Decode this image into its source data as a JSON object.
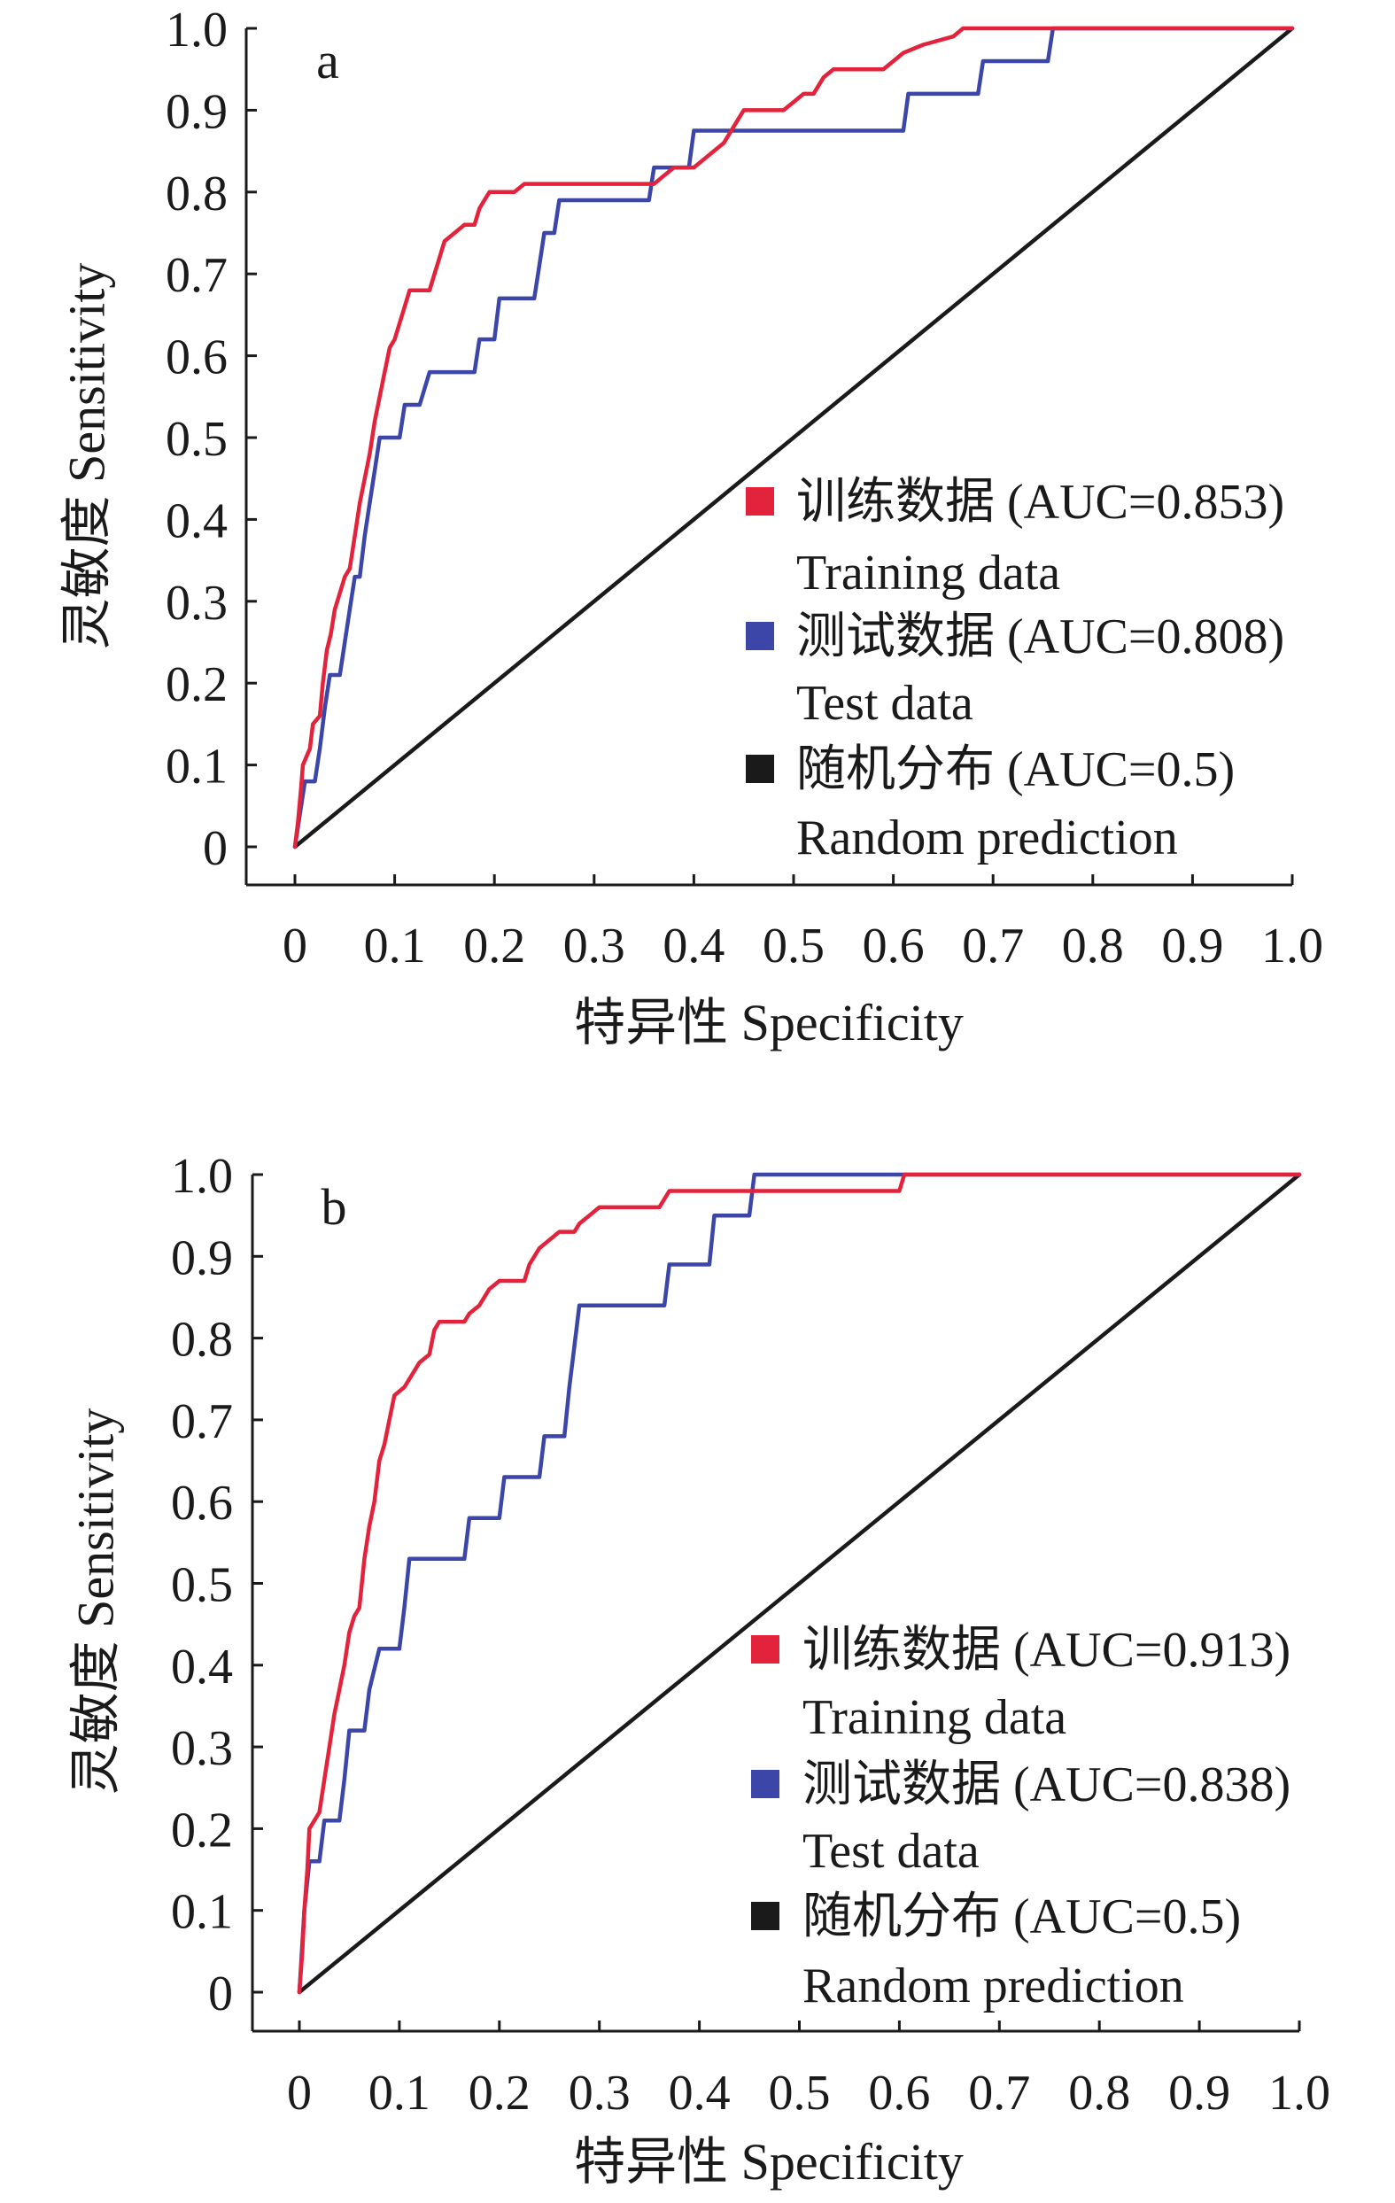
{
  "chart_data": [
    {
      "type": "line",
      "panel_label": "a",
      "xlabel": "特异性 Specificity",
      "ylabel": "灵敏度 Sensitivity",
      "xlim": [
        0,
        1
      ],
      "ylim": [
        0,
        1
      ],
      "xticks": [
        "0",
        "0.1",
        "0.2",
        "0.3",
        "0.4",
        "0.5",
        "0.6",
        "0.7",
        "0.8",
        "0.9",
        "1.0"
      ],
      "yticks": [
        "0",
        "0.1",
        "0.2",
        "0.3",
        "0.4",
        "0.5",
        "0.6",
        "0.7",
        "0.8",
        "0.9",
        "1.0"
      ],
      "grid": false,
      "legend_position": "lower-right",
      "series": [
        {
          "name": "训练数据 (AUC=0.853)",
          "name_en": "Training data",
          "color": "#e2233b",
          "points": [
            [
              0,
              0
            ],
            [
              0.003,
              0.03
            ],
            [
              0.006,
              0.07
            ],
            [
              0.008,
              0.1
            ],
            [
              0.015,
              0.12
            ],
            [
              0.018,
              0.15
            ],
            [
              0.025,
              0.16
            ],
            [
              0.028,
              0.2
            ],
            [
              0.032,
              0.24
            ],
            [
              0.036,
              0.26
            ],
            [
              0.04,
              0.29
            ],
            [
              0.045,
              0.31
            ],
            [
              0.05,
              0.33
            ],
            [
              0.055,
              0.34
            ],
            [
              0.06,
              0.38
            ],
            [
              0.065,
              0.42
            ],
            [
              0.07,
              0.45
            ],
            [
              0.075,
              0.48
            ],
            [
              0.08,
              0.52
            ],
            [
              0.085,
              0.55
            ],
            [
              0.09,
              0.58
            ],
            [
              0.095,
              0.61
            ],
            [
              0.1,
              0.62
            ],
            [
              0.105,
              0.64
            ],
            [
              0.11,
              0.66
            ],
            [
              0.115,
              0.68
            ],
            [
              0.135,
              0.68
            ],
            [
              0.14,
              0.7
            ],
            [
              0.145,
              0.72
            ],
            [
              0.15,
              0.74
            ],
            [
              0.16,
              0.75
            ],
            [
              0.17,
              0.76
            ],
            [
              0.18,
              0.76
            ],
            [
              0.185,
              0.78
            ],
            [
              0.19,
              0.79
            ],
            [
              0.195,
              0.8
            ],
            [
              0.22,
              0.8
            ],
            [
              0.23,
              0.81
            ],
            [
              0.36,
              0.81
            ],
            [
              0.37,
              0.82
            ],
            [
              0.38,
              0.83
            ],
            [
              0.4,
              0.83
            ],
            [
              0.41,
              0.84
            ],
            [
              0.42,
              0.85
            ],
            [
              0.43,
              0.86
            ],
            [
              0.44,
              0.88
            ],
            [
              0.45,
              0.9
            ],
            [
              0.49,
              0.9
            ],
            [
              0.5,
              0.91
            ],
            [
              0.51,
              0.92
            ],
            [
              0.52,
              0.92
            ],
            [
              0.53,
              0.94
            ],
            [
              0.54,
              0.95
            ],
            [
              0.59,
              0.95
            ],
            [
              0.6,
              0.96
            ],
            [
              0.61,
              0.97
            ],
            [
              0.63,
              0.98
            ],
            [
              0.66,
              0.99
            ],
            [
              0.67,
              1.0
            ],
            [
              1.0,
              1.0
            ]
          ]
        },
        {
          "name": "测试数据 (AUC=0.808)",
          "name_en": "Test data",
          "color": "#3c46a9",
          "points": [
            [
              0,
              0
            ],
            [
              0.005,
              0.04
            ],
            [
              0.01,
              0.08
            ],
            [
              0.02,
              0.08
            ],
            [
              0.025,
              0.12
            ],
            [
              0.03,
              0.17
            ],
            [
              0.035,
              0.21
            ],
            [
              0.045,
              0.21
            ],
            [
              0.05,
              0.25
            ],
            [
              0.055,
              0.29
            ],
            [
              0.06,
              0.33
            ],
            [
              0.065,
              0.33
            ],
            [
              0.07,
              0.38
            ],
            [
              0.075,
              0.42
            ],
            [
              0.08,
              0.46
            ],
            [
              0.085,
              0.5
            ],
            [
              0.105,
              0.5
            ],
            [
              0.11,
              0.54
            ],
            [
              0.125,
              0.54
            ],
            [
              0.13,
              0.56
            ],
            [
              0.135,
              0.58
            ],
            [
              0.18,
              0.58
            ],
            [
              0.185,
              0.62
            ],
            [
              0.2,
              0.62
            ],
            [
              0.205,
              0.67
            ],
            [
              0.24,
              0.67
            ],
            [
              0.245,
              0.71
            ],
            [
              0.25,
              0.75
            ],
            [
              0.26,
              0.75
            ],
            [
              0.265,
              0.79
            ],
            [
              0.355,
              0.79
            ],
            [
              0.36,
              0.83
            ],
            [
              0.395,
              0.83
            ],
            [
              0.4,
              0.875
            ],
            [
              0.61,
              0.875
            ],
            [
              0.615,
              0.92
            ],
            [
              0.685,
              0.92
            ],
            [
              0.69,
              0.96
            ],
            [
              0.755,
              0.96
            ],
            [
              0.76,
              1.0
            ],
            [
              1.0,
              1.0
            ]
          ]
        },
        {
          "name": "随机分布 (AUC=0.5)",
          "name_en": "Random prediction",
          "color": "#1a1a1a",
          "points": [
            [
              0,
              0
            ],
            [
              1,
              1
            ]
          ]
        }
      ]
    },
    {
      "type": "line",
      "panel_label": "b",
      "xlabel": "特异性 Specificity",
      "ylabel": "灵敏度 Sensitivity",
      "xlim": [
        0,
        1
      ],
      "ylim": [
        0,
        1
      ],
      "xticks": [
        "0",
        "0.1",
        "0.2",
        "0.3",
        "0.4",
        "0.5",
        "0.6",
        "0.7",
        "0.8",
        "0.9",
        "1.0"
      ],
      "yticks": [
        "0",
        "0.1",
        "0.2",
        "0.3",
        "0.4",
        "0.5",
        "0.6",
        "0.7",
        "0.8",
        "0.9",
        "1.0"
      ],
      "grid": false,
      "legend_position": "lower-right",
      "series": [
        {
          "name": "训练数据 (AUC=0.913)",
          "name_en": "Training data",
          "color": "#e2233b",
          "points": [
            [
              0,
              0
            ],
            [
              0.003,
              0.05
            ],
            [
              0.005,
              0.1
            ],
            [
              0.008,
              0.15
            ],
            [
              0.01,
              0.2
            ],
            [
              0.02,
              0.22
            ],
            [
              0.025,
              0.26
            ],
            [
              0.03,
              0.3
            ],
            [
              0.035,
              0.34
            ],
            [
              0.04,
              0.37
            ],
            [
              0.045,
              0.4
            ],
            [
              0.05,
              0.44
            ],
            [
              0.055,
              0.46
            ],
            [
              0.06,
              0.47
            ],
            [
              0.065,
              0.53
            ],
            [
              0.07,
              0.57
            ],
            [
              0.075,
              0.6
            ],
            [
              0.08,
              0.65
            ],
            [
              0.085,
              0.67
            ],
            [
              0.09,
              0.7
            ],
            [
              0.095,
              0.73
            ],
            [
              0.105,
              0.74
            ],
            [
              0.11,
              0.75
            ],
            [
              0.12,
              0.77
            ],
            [
              0.13,
              0.78
            ],
            [
              0.135,
              0.81
            ],
            [
              0.14,
              0.82
            ],
            [
              0.165,
              0.82
            ],
            [
              0.17,
              0.83
            ],
            [
              0.18,
              0.84
            ],
            [
              0.19,
              0.86
            ],
            [
              0.2,
              0.87
            ],
            [
              0.225,
              0.87
            ],
            [
              0.23,
              0.89
            ],
            [
              0.24,
              0.91
            ],
            [
              0.25,
              0.92
            ],
            [
              0.26,
              0.93
            ],
            [
              0.275,
              0.93
            ],
            [
              0.28,
              0.94
            ],
            [
              0.29,
              0.95
            ],
            [
              0.3,
              0.96
            ],
            [
              0.36,
              0.96
            ],
            [
              0.37,
              0.98
            ],
            [
              0.6,
              0.98
            ],
            [
              0.605,
              1.0
            ],
            [
              1.0,
              1.0
            ]
          ]
        },
        {
          "name": "测试数据 (AUC=0.838)",
          "name_en": "Test data",
          "color": "#3c46a9",
          "points": [
            [
              0,
              0
            ],
            [
              0.005,
              0.1
            ],
            [
              0.01,
              0.16
            ],
            [
              0.02,
              0.16
            ],
            [
              0.025,
              0.21
            ],
            [
              0.04,
              0.21
            ],
            [
              0.045,
              0.26
            ],
            [
              0.05,
              0.32
            ],
            [
              0.065,
              0.32
            ],
            [
              0.07,
              0.37
            ],
            [
              0.08,
              0.42
            ],
            [
              0.1,
              0.42
            ],
            [
              0.105,
              0.47
            ],
            [
              0.11,
              0.53
            ],
            [
              0.165,
              0.53
            ],
            [
              0.17,
              0.58
            ],
            [
              0.2,
              0.58
            ],
            [
              0.205,
              0.63
            ],
            [
              0.24,
              0.63
            ],
            [
              0.245,
              0.68
            ],
            [
              0.265,
              0.68
            ],
            [
              0.27,
              0.74
            ],
            [
              0.275,
              0.79
            ],
            [
              0.28,
              0.84
            ],
            [
              0.365,
              0.84
            ],
            [
              0.37,
              0.89
            ],
            [
              0.41,
              0.89
            ],
            [
              0.415,
              0.95
            ],
            [
              0.45,
              0.95
            ],
            [
              0.455,
              1.0
            ],
            [
              1.0,
              1.0
            ]
          ]
        },
        {
          "name": "随机分布 (AUC=0.5)",
          "name_en": "Random prediction",
          "color": "#1a1a1a",
          "points": [
            [
              0,
              0
            ],
            [
              1,
              1
            ]
          ]
        }
      ]
    }
  ]
}
